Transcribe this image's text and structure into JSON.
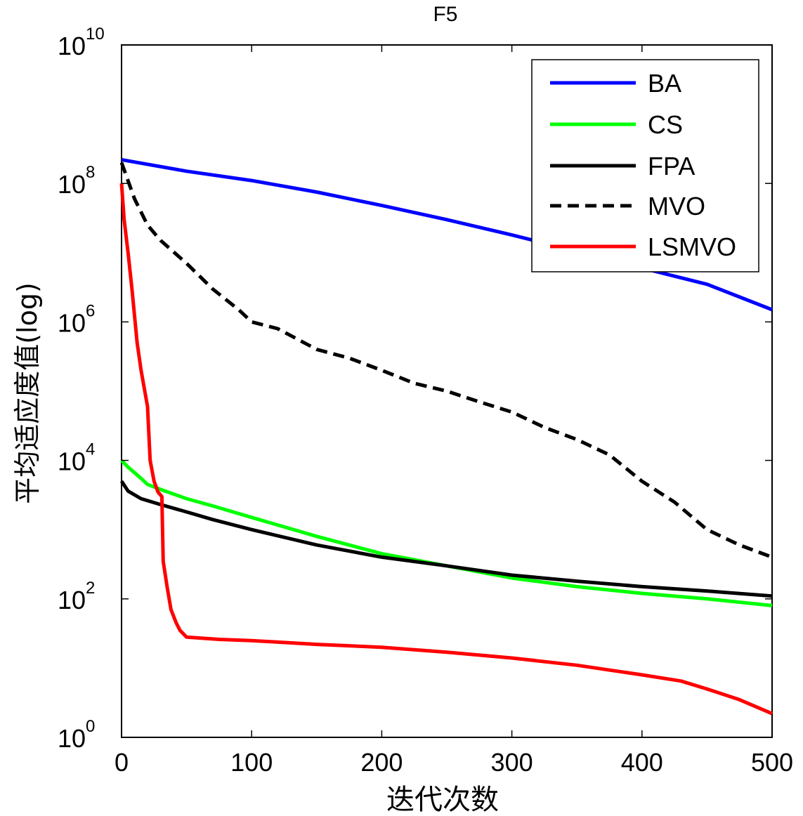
{
  "chart_data": {
    "type": "line",
    "title": "F5",
    "xlabel": "迭代次数",
    "ylabel": "平均适应度值(log)",
    "xlim": [
      0,
      500
    ],
    "ylim": [
      1,
      10000000000
    ],
    "yscale": "log",
    "x_ticks": [
      0,
      100,
      200,
      300,
      400,
      500
    ],
    "y_ticks": [
      {
        "base": "10",
        "exp": "0",
        "value": 1
      },
      {
        "base": "10",
        "exp": "2",
        "value": 100
      },
      {
        "base": "10",
        "exp": "4",
        "value": 10000
      },
      {
        "base": "10",
        "exp": "6",
        "value": 1000000
      },
      {
        "base": "10",
        "exp": "8",
        "value": 100000000
      },
      {
        "base": "10",
        "exp": "10",
        "value": 10000000000
      }
    ],
    "grid": false,
    "legend_position": "top-right",
    "series": [
      {
        "name": "BA",
        "color": "#0000ff",
        "dash": "solid",
        "x": [
          0,
          50,
          100,
          150,
          200,
          250,
          300,
          350,
          400,
          450,
          500
        ],
        "y": [
          220000000,
          150000000,
          110000000,
          75000000,
          48000000,
          30000000,
          18000000,
          10500000,
          6000000,
          3500000,
          1500000
        ]
      },
      {
        "name": "CS",
        "color": "#00ff00",
        "dash": "solid",
        "x": [
          0,
          5,
          15,
          20,
          30,
          50,
          70,
          100,
          150,
          200,
          250,
          300,
          350,
          400,
          450,
          500
        ],
        "y": [
          10000,
          8000,
          5500,
          4500,
          3800,
          2800,
          2200,
          1500,
          800,
          450,
          300,
          200,
          150,
          120,
          100,
          80
        ]
      },
      {
        "name": "FPA",
        "color": "#000000",
        "dash": "solid",
        "x": [
          0,
          5,
          15,
          30,
          50,
          70,
          100,
          150,
          200,
          250,
          300,
          350,
          400,
          450,
          500
        ],
        "y": [
          5000,
          3600,
          2800,
          2300,
          1800,
          1400,
          1000,
          600,
          400,
          300,
          220,
          180,
          150,
          130,
          110
        ]
      },
      {
        "name": "MVO",
        "color": "#000000",
        "dash": "dashed",
        "x": [
          0,
          10,
          20,
          30,
          50,
          70,
          90,
          100,
          120,
          150,
          175,
          200,
          225,
          250,
          275,
          300,
          325,
          350,
          375,
          400,
          425,
          450,
          475,
          500
        ],
        "y": [
          200000000,
          60000000,
          25000000,
          15000000,
          7000000,
          3000000,
          1500000,
          1000000,
          800000,
          400000,
          300000,
          200000,
          130000,
          100000,
          70000,
          50000,
          30000,
          20000,
          12000,
          5000,
          2500,
          1000,
          600,
          400
        ]
      },
      {
        "name": "LSMVO",
        "color": "#ff0000",
        "dash": "solid",
        "x": [
          0,
          2,
          5,
          8,
          12,
          15,
          20,
          22,
          25,
          28,
          31,
          32,
          35,
          38,
          42,
          45,
          50,
          75,
          100,
          150,
          200,
          250,
          300,
          350,
          400,
          430,
          450,
          475,
          500
        ],
        "y": [
          100000000,
          30000000,
          10000000,
          3000000,
          500000,
          200000,
          60000,
          10000,
          5000,
          3500,
          3000,
          350,
          150,
          70,
          45,
          35,
          28,
          26,
          25,
          22,
          20,
          17,
          14,
          11,
          8,
          6.5,
          5,
          3.5,
          2.2
        ]
      }
    ]
  }
}
